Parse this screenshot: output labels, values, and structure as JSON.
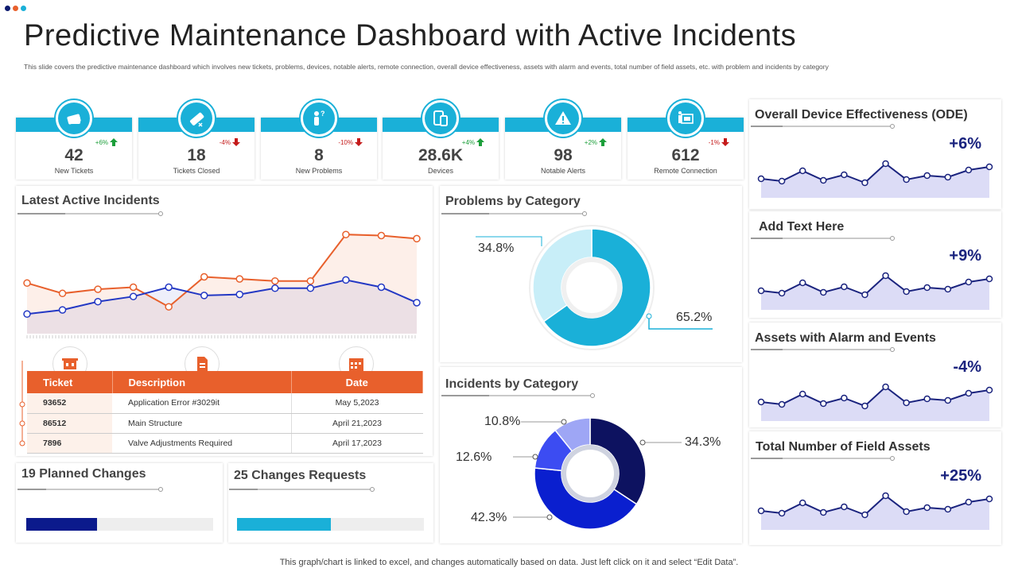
{
  "page": {
    "title": "Predictive Maintenance Dashboard with Active Incidents",
    "subtitle": "This slide covers the predictive maintenance dashboard which involves new tickets, problems, devices, notable alerts, remote connection, overall device effectiveness, assets with alarm and events, total number of field assets, etc. with problem and incidents by category",
    "footer": "This graph/chart is linked to excel, and changes automatically based on data. Just left click on it and select “Edit Data”."
  },
  "colors": {
    "teal": "#1ab0d8",
    "orange": "#e8602c",
    "navy": "#0b1a8c",
    "up": "#1c9e3a",
    "down": "#c41a1a"
  },
  "kpis": [
    {
      "value": "42",
      "label": "New Tickets",
      "change": "+6%",
      "direction": "up",
      "icon": "ticket-icon"
    },
    {
      "value": "18",
      "label": "Tickets Closed",
      "change": "-4%",
      "direction": "down",
      "icon": "ticket-closed-icon"
    },
    {
      "value": "8",
      "label": "New Problems",
      "change": "-10%",
      "direction": "down",
      "icon": "person-question-icon"
    },
    {
      "value": "28.6K",
      "label": "Devices",
      "change": "+4%",
      "direction": "up",
      "icon": "devices-icon"
    },
    {
      "value": "98",
      "label": "Notable Alerts",
      "change": "+2%",
      "direction": "up",
      "icon": "alert-icon"
    },
    {
      "value": "612",
      "label": "Remote Connection",
      "change": "-1%",
      "direction": "down",
      "icon": "remote-connection-icon"
    }
  ],
  "incidents": {
    "title": "Latest Active Incidents",
    "headers": {
      "ticket": "Ticket",
      "description": "Description",
      "date": "Date"
    },
    "rows": [
      {
        "ticket": "93652",
        "description": "Application Error #3029it",
        "date": "May 5,2023"
      },
      {
        "ticket": "86512",
        "description": "Main Structure",
        "date": "April 21,2023"
      },
      {
        "ticket": "7896",
        "description": "Valve Adjustments Required",
        "date": "April 17,2023"
      }
    ]
  },
  "problems": {
    "title": "Problems by Category",
    "labels": [
      "34.8%",
      "65.2%"
    ]
  },
  "incidents_cat": {
    "title": "Incidents by Category",
    "labels": [
      "10.8%",
      "12.6%",
      "42.3%",
      "34.3%"
    ]
  },
  "changes": {
    "planned": {
      "title": "19 Planned Changes",
      "fill": 0.38
    },
    "requests": {
      "title": "25 Changes Requests",
      "fill": 0.5
    }
  },
  "sparks": [
    {
      "title": "Overall Device Effectiveness (ODE)",
      "change": "+6%"
    },
    {
      "title": "Add Text Here",
      "change": "+9%"
    },
    {
      "title": "Assets with Alarm and Events",
      "change": "-4%"
    },
    {
      "title": "Total Number of Field Assets",
      "change": "+25%"
    }
  ],
  "chart_data": [
    {
      "type": "line",
      "title": "Latest Active Incidents",
      "x": [
        1,
        2,
        3,
        4,
        5,
        6,
        7,
        8,
        9,
        10,
        11,
        12
      ],
      "ylim": [
        0,
        10
      ],
      "series": [
        {
          "color": "#e8602c",
          "values": [
            4.9,
            3.9,
            4.3,
            4.5,
            2.6,
            5.5,
            5.3,
            5.1,
            5.1,
            9.6,
            9.5,
            9.2
          ]
        },
        {
          "color": "#2338c4",
          "values": [
            1.9,
            2.3,
            3.1,
            3.6,
            4.5,
            3.7,
            3.8,
            4.4,
            4.4,
            5.2,
            4.5,
            3.0
          ]
        }
      ]
    },
    {
      "type": "pie",
      "title": "Problems by Category",
      "values": [
        34.8,
        65.2
      ],
      "colors": [
        "#c8eef8",
        "#1ab0d8"
      ]
    },
    {
      "type": "pie",
      "title": "Incidents by Category",
      "values": [
        34.3,
        42.3,
        12.6,
        10.8
      ],
      "colors": [
        "#0d1260",
        "#0a1fcf",
        "#3c4cf2",
        "#9ea6f5"
      ]
    },
    {
      "type": "line",
      "title": "Overall Device Effectiveness (ODE)",
      "values": [
        2.4,
        2.1,
        3.4,
        2.2,
        2.9,
        1.9,
        4.3,
        2.3,
        2.8,
        2.6,
        3.5,
        3.9
      ]
    },
    {
      "type": "line",
      "title": "Add Text Here",
      "values": [
        2.4,
        2.1,
        3.4,
        2.2,
        2.9,
        1.9,
        4.3,
        2.3,
        2.8,
        2.6,
        3.5,
        3.9
      ]
    },
    {
      "type": "line",
      "title": "Assets with Alarm and Events",
      "values": [
        2.4,
        2.1,
        3.4,
        2.2,
        2.9,
        1.9,
        4.3,
        2.3,
        2.8,
        2.6,
        3.5,
        3.9
      ]
    },
    {
      "type": "line",
      "title": "Total Number of Field Assets",
      "values": [
        2.4,
        2.1,
        3.4,
        2.2,
        2.9,
        1.9,
        4.3,
        2.3,
        2.8,
        2.6,
        3.5,
        3.9
      ]
    }
  ]
}
